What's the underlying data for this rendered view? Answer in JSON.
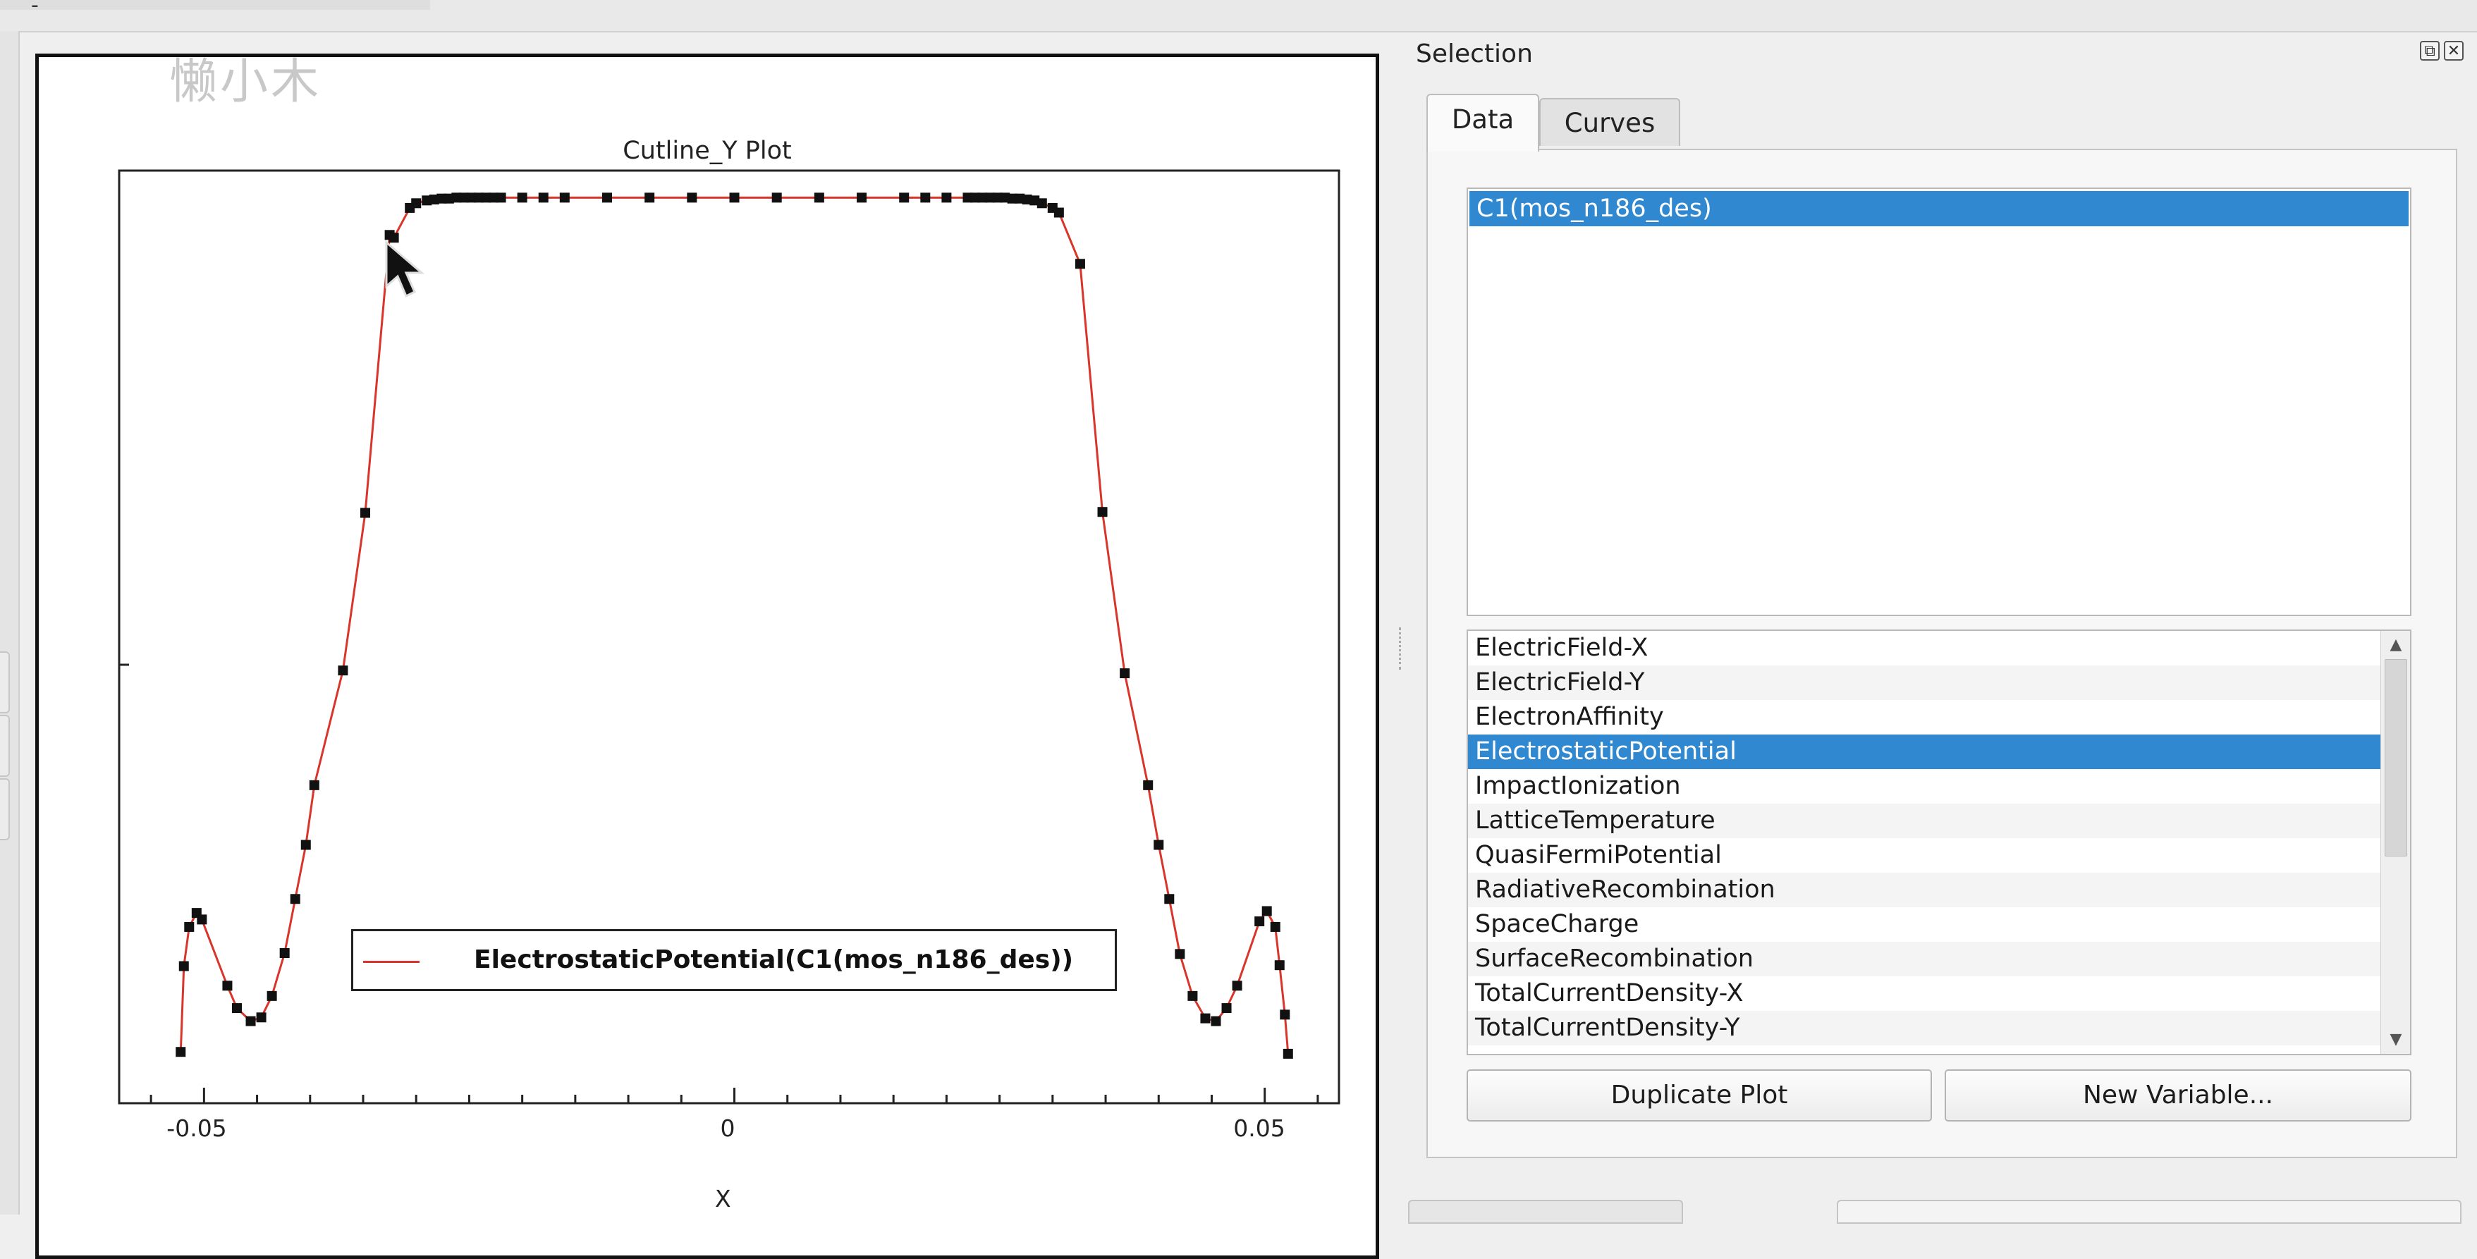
{
  "window": {
    "top_dash": "-"
  },
  "plot": {
    "watermark": "懒小木",
    "title": "Cutline_Y Plot",
    "legend_label": "ElectrostaticPotential(C1(mos_n186_des))",
    "x_axis_label": "X",
    "x_tick_labels": [
      "-0.05",
      "0",
      "0.05"
    ],
    "line_color": "#d9352a",
    "marker_color": "#111111",
    "cursor": "arrow-cursor-icon"
  },
  "chart_data": {
    "type": "line",
    "xlabel": "X",
    "ylabel": "",
    "xlim": [
      -0.058,
      0.057
    ],
    "ylim": [
      0,
      1
    ],
    "x_ticks": [
      -0.05,
      0,
      0.05
    ],
    "grid": false,
    "legend_position": "bottom-center",
    "series": [
      {
        "name": "ElectrostaticPotential(C1(mos_n186_des))",
        "x": [
          -0.0522,
          -0.0519,
          -0.0514,
          -0.0507,
          -0.0502,
          -0.0478,
          -0.0469,
          -0.0456,
          -0.0446,
          -0.0436,
          -0.0424,
          -0.0414,
          -0.0404,
          -0.0396,
          -0.0369,
          -0.0348,
          -0.0325,
          -0.0321,
          -0.0306,
          -0.03,
          -0.029,
          -0.0283,
          -0.0276,
          -0.0269,
          -0.0262,
          -0.0255,
          -0.0248,
          -0.0241,
          -0.0234,
          -0.0227,
          -0.022,
          -0.02,
          -0.018,
          -0.016,
          -0.012,
          -0.008,
          -0.004,
          0,
          0.004,
          0.008,
          0.012,
          0.016,
          0.018,
          0.02,
          0.022,
          0.0227,
          0.0234,
          0.0241,
          0.0248,
          0.0255,
          0.0262,
          0.0269,
          0.0276,
          0.0283,
          0.029,
          0.03,
          0.0306,
          0.0326,
          0.0347,
          0.0368,
          0.039,
          0.04,
          0.041,
          0.042,
          0.0432,
          0.0444,
          0.0454,
          0.0464,
          0.0474,
          0.0495,
          0.0502,
          0.051,
          0.0514,
          0.0519,
          0.0522
        ],
        "y": [
          0.055,
          0.147,
          0.189,
          0.204,
          0.197,
          0.126,
          0.102,
          0.088,
          0.092,
          0.115,
          0.161,
          0.219,
          0.277,
          0.341,
          0.464,
          0.633,
          0.931,
          0.928,
          0.96,
          0.965,
          0.968,
          0.969,
          0.97,
          0.97,
          0.971,
          0.971,
          0.971,
          0.971,
          0.971,
          0.971,
          0.971,
          0.971,
          0.971,
          0.971,
          0.971,
          0.971,
          0.971,
          0.971,
          0.971,
          0.971,
          0.971,
          0.971,
          0.971,
          0.971,
          0.971,
          0.971,
          0.971,
          0.971,
          0.971,
          0.971,
          0.97,
          0.97,
          0.969,
          0.968,
          0.965,
          0.96,
          0.955,
          0.9,
          0.634,
          0.461,
          0.341,
          0.277,
          0.219,
          0.16,
          0.115,
          0.091,
          0.088,
          0.102,
          0.126,
          0.195,
          0.206,
          0.189,
          0.148,
          0.095,
          0.053
        ]
      }
    ]
  },
  "selection_panel": {
    "title": "Selection",
    "float_glyph": "⧉",
    "close_glyph": "✕",
    "tabs": [
      {
        "label": "Data"
      },
      {
        "label": "Curves"
      }
    ],
    "datasets": [
      "C1(mos_n186_des)"
    ],
    "variables": [
      "ElectricField-X",
      "ElectricField-Y",
      "ElectronAffinity",
      "ElectrostaticPotential",
      "ImpactIonization",
      "LatticeTemperature",
      "QuasiFermiPotential",
      "RadiativeRecombination",
      "SpaceCharge",
      "SurfaceRecombination",
      "TotalCurrentDensity-X",
      "TotalCurrentDensity-Y"
    ],
    "selected_variable": "ElectrostaticPotential",
    "scroll_up_glyph": "▲",
    "scroll_down_glyph": "▼",
    "buttons": {
      "duplicate_plot": "Duplicate Plot",
      "new_variable": "New Variable..."
    },
    "selection_color": "#2f88d0"
  }
}
